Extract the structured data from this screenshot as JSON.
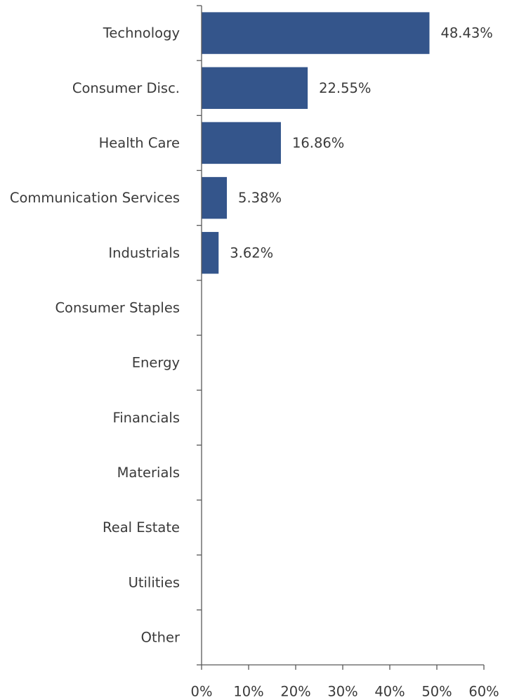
{
  "chart_data": {
    "type": "bar",
    "orientation": "horizontal",
    "title": "",
    "xlabel": "",
    "ylabel": "",
    "categories": [
      "Technology",
      "Consumer Disc.",
      "Health Care",
      "Communication Services",
      "Industrials",
      "Consumer Staples",
      "Energy",
      "Financials",
      "Materials",
      "Real Estate",
      "Utilities",
      "Other"
    ],
    "values": [
      48.43,
      22.55,
      16.86,
      5.38,
      3.62,
      null,
      null,
      null,
      null,
      null,
      null,
      null
    ],
    "data_labels": [
      "48.43%",
      "22.55%",
      "16.86%",
      "5.38%",
      "3.62%",
      "",
      "",
      "",
      "",
      "",
      "",
      ""
    ],
    "xlim": [
      0,
      60
    ],
    "x_ticks": [
      0,
      10,
      20,
      30,
      40,
      50,
      60
    ],
    "x_tick_labels": [
      "0%",
      "10%",
      "20%",
      "30%",
      "40%",
      "50%",
      "60%"
    ],
    "bar_color": "#34558b",
    "grid": false,
    "legend": "none"
  }
}
